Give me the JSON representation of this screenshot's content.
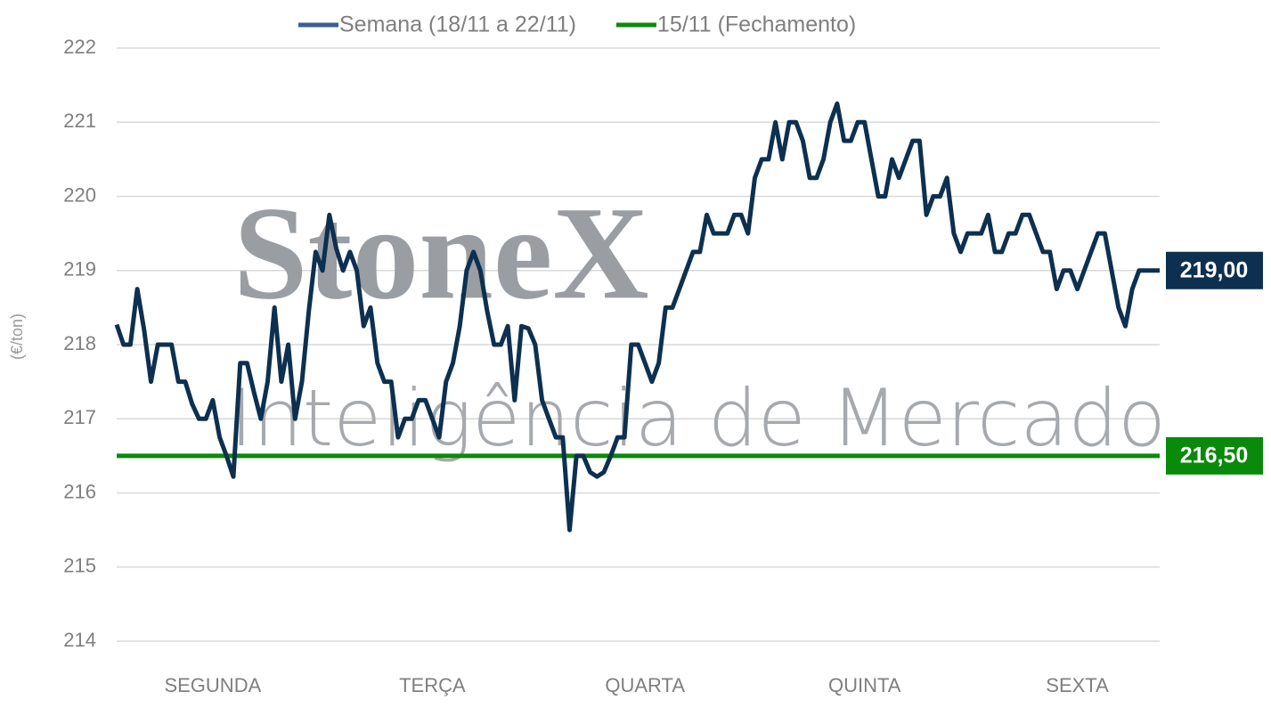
{
  "chart_data": {
    "type": "line",
    "categories": [
      null,
      null,
      null,
      null,
      null,
      null,
      null,
      null,
      null,
      null,
      null,
      null,
      null,
      null,
      "SEGUNDA",
      null,
      null,
      null,
      null,
      null,
      null,
      null,
      null,
      null,
      null,
      null,
      null,
      null,
      null,
      null,
      null,
      null,
      null,
      null,
      null,
      null,
      null,
      null,
      null,
      null,
      null,
      null,
      null,
      null,
      null,
      null,
      "TERÇA",
      null,
      null,
      null,
      null,
      null,
      null,
      null,
      null,
      null,
      null,
      null,
      null,
      null,
      null,
      null,
      null,
      null,
      null,
      null,
      null,
      null,
      null,
      null,
      null,
      null,
      null,
      null,
      null,
      null,
      null,
      "QUARTA",
      null,
      null,
      null,
      null,
      null,
      null,
      null,
      null,
      null,
      null,
      null,
      null,
      null,
      null,
      null,
      null,
      null,
      null,
      null,
      null,
      null,
      null,
      null,
      null,
      null,
      null,
      null,
      null,
      null,
      null,
      null,
      "QUINTA",
      null,
      null,
      null,
      null,
      null,
      null,
      null,
      null,
      null,
      null,
      null,
      null,
      null,
      null,
      null,
      null,
      null,
      null,
      null,
      null,
      null,
      null,
      null,
      null,
      null,
      null,
      null,
      null,
      null,
      null,
      "SEXTA",
      null,
      null,
      null,
      null,
      null,
      null,
      null,
      null,
      null,
      null,
      null,
      null
    ],
    "series": [
      {
        "name": "Semana (18/11 a 22/11)",
        "color": "#0d3050",
        "legend_color": "#3a6190",
        "end_label": "219,00",
        "values": [
          218.27,
          218.0,
          218.0,
          218.75,
          218.2,
          217.5,
          218.0,
          218.0,
          218.0,
          217.5,
          217.5,
          217.2,
          217.0,
          217.0,
          217.25,
          216.75,
          216.5,
          216.22,
          217.75,
          217.75,
          217.36,
          217.0,
          217.5,
          218.5,
          217.5,
          218.0,
          217.0,
          217.5,
          218.45,
          219.25,
          219.0,
          219.75,
          219.3,
          219.0,
          219.25,
          219.0,
          218.25,
          218.5,
          217.75,
          217.5,
          217.5,
          216.75,
          217.0,
          217.0,
          217.25,
          217.25,
          217.0,
          216.75,
          217.5,
          217.75,
          218.25,
          219.0,
          219.25,
          219.0,
          218.45,
          218.0,
          218.0,
          218.25,
          217.25,
          218.25,
          218.22,
          218.0,
          217.25,
          217.0,
          216.75,
          216.75,
          215.5,
          216.5,
          216.5,
          216.28,
          216.22,
          216.28,
          216.5,
          216.75,
          216.75,
          218.0,
          218.0,
          217.75,
          217.5,
          217.75,
          218.5,
          218.5,
          218.75,
          219.0,
          219.25,
          219.25,
          219.75,
          219.5,
          219.5,
          219.5,
          219.75,
          219.75,
          219.5,
          220.25,
          220.5,
          220.5,
          221.0,
          220.5,
          221.0,
          221.0,
          220.75,
          220.25,
          220.25,
          220.5,
          221.0,
          221.25,
          220.75,
          220.75,
          221.0,
          221.0,
          220.5,
          220.0,
          220.0,
          220.5,
          220.25,
          220.5,
          220.75,
          220.75,
          219.75,
          220.0,
          220.0,
          220.25,
          219.5,
          219.25,
          219.5,
          219.5,
          219.5,
          219.75,
          219.25,
          219.25,
          219.5,
          219.5,
          219.75,
          219.75,
          219.5,
          219.25,
          219.25,
          218.75,
          219.0,
          219.0,
          218.75,
          219.0,
          219.25,
          219.5,
          219.5,
          219.0,
          218.5,
          218.25,
          218.75,
          219.0,
          219.0,
          219.0,
          219.0
        ]
      }
    ],
    "reference_lines": [
      {
        "name": "15/11 (Fechamento)",
        "value": 216.5,
        "label": "216,50",
        "color": "#0a8a0a"
      }
    ],
    "ylabel": "(€/ton)",
    "ylim": [
      214,
      222
    ],
    "yticks": [
      214,
      215,
      216,
      217,
      218,
      219,
      220,
      221,
      222
    ],
    "grid": true,
    "grid_color": "#d9d9d9",
    "legend": "top",
    "watermark": [
      "StoneX",
      "Inteligência de Mercado"
    ]
  }
}
